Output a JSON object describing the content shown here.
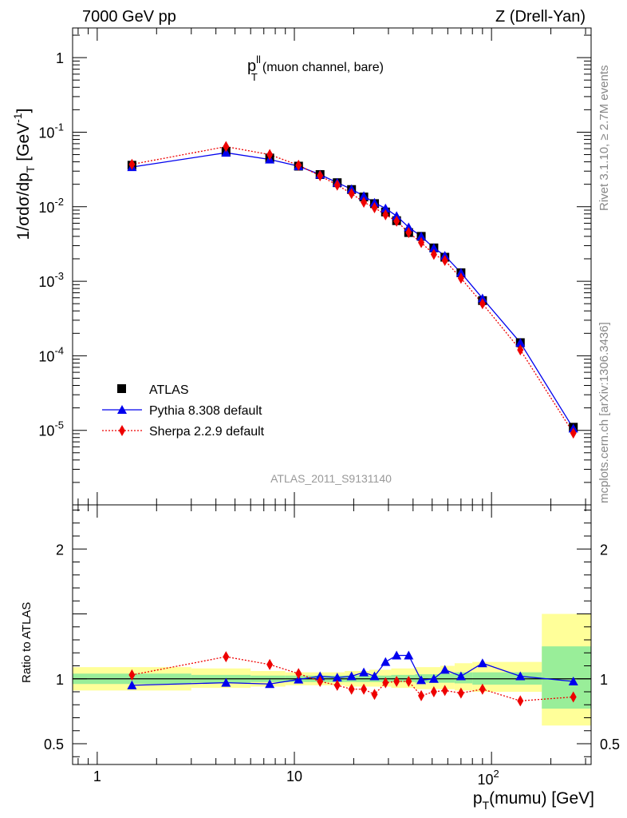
{
  "header": {
    "left": "7000 GeV pp",
    "right": "Z (Drell-Yan)"
  },
  "side_labels": {
    "rivet": "Rivet 3.1.10, ≥ 2.7M events",
    "source": "mcplots.cern.ch [arXiv:1306.3436]"
  },
  "chart_data": [
    {
      "type": "scatter",
      "title": "p_T^ll (muon channel, bare)",
      "title_main": "p",
      "title_sup": "ll",
      "title_sub": "T",
      "title_rest": "(muon channel, bare)",
      "ylabel": "1/σdσ/dp_T [GeV⁻¹]",
      "analysis_id": "ATLAS_2011_S9131140",
      "xscale": "log",
      "yscale": "log",
      "xlim": [
        0.75,
        320
      ],
      "ylim": [
        1e-06,
        2.5
      ],
      "legend_position": "bottom-left",
      "y_ticks": [
        "1",
        "10^-1",
        "10^-2",
        "10^-3",
        "10^-4",
        "10^-5"
      ],
      "series": [
        {
          "name": "ATLAS",
          "color": "#000000",
          "marker": "square",
          "x": [
            1.5,
            4.5,
            7.5,
            10.5,
            13.5,
            16.5,
            19.5,
            22.5,
            25.5,
            29,
            33,
            38,
            44,
            51,
            58,
            70,
            90,
            140,
            260
          ],
          "y": [
            0.036,
            0.055,
            0.045,
            0.035,
            0.027,
            0.021,
            0.017,
            0.0135,
            0.011,
            0.0085,
            0.0065,
            0.0045,
            0.004,
            0.0028,
            0.0021,
            0.0013,
            0.00055,
            0.00015,
            1.1e-05
          ]
        },
        {
          "name": "Pythia 8.308 default",
          "color": "#0000ee",
          "marker": "triangle",
          "linestyle": "solid",
          "x": [
            1.5,
            4.5,
            7.5,
            10.5,
            13.5,
            16.5,
            19.5,
            22.5,
            25.5,
            29,
            33,
            38,
            44,
            51,
            58,
            70,
            90,
            140,
            260
          ],
          "y": [
            0.034,
            0.053,
            0.043,
            0.035,
            0.027,
            0.021,
            0.0172,
            0.0139,
            0.0113,
            0.0095,
            0.0075,
            0.0053,
            0.004,
            0.0028,
            0.0022,
            0.0013,
            0.00059,
            0.00015,
            1.06e-05
          ]
        },
        {
          "name": "Sherpa 2.2.9 default",
          "color": "#ee0000",
          "marker": "diamond",
          "linestyle": "dotted",
          "x": [
            1.5,
            4.5,
            7.5,
            10.5,
            13.5,
            16.5,
            19.5,
            22.5,
            25.5,
            29,
            33,
            38,
            44,
            51,
            58,
            70,
            90,
            140,
            260
          ],
          "y": [
            0.037,
            0.064,
            0.05,
            0.036,
            0.026,
            0.0195,
            0.015,
            0.0115,
            0.0097,
            0.0078,
            0.0064,
            0.0045,
            0.0033,
            0.0023,
            0.0019,
            0.0011,
            0.0005,
            0.00012,
            9.2e-06
          ]
        }
      ]
    },
    {
      "type": "scatter",
      "ylabel": "Ratio to ATLAS",
      "xlabel": "p_T(mumu) [GeV]",
      "xlabel_p": "p",
      "xlabel_sub": "T",
      "xlabel_rest": "(mumu) [GeV]",
      "xscale": "log",
      "xlim": [
        0.75,
        320
      ],
      "ylim": [
        0.34,
        2.34
      ],
      "y_ticks": [
        0.5,
        1,
        2
      ],
      "x_tick_labels": [
        "1",
        "10",
        "10^2"
      ],
      "bands": [
        {
          "x": [
            0.75,
            3
          ],
          "stat": [
            0.96,
            1.04
          ],
          "total": [
            0.91,
            1.09
          ]
        },
        {
          "x": [
            3,
            6
          ],
          "stat": [
            0.97,
            1.03
          ],
          "total": [
            0.93,
            1.08
          ]
        },
        {
          "x": [
            6,
            9
          ],
          "stat": [
            0.975,
            1.025
          ],
          "total": [
            0.94,
            1.06
          ]
        },
        {
          "x": [
            9,
            12
          ],
          "stat": [
            0.975,
            1.025
          ],
          "total": [
            0.95,
            1.05
          ]
        },
        {
          "x": [
            12,
            18
          ],
          "stat": [
            0.975,
            1.025
          ],
          "total": [
            0.95,
            1.05
          ]
        },
        {
          "x": [
            18,
            24
          ],
          "stat": [
            0.975,
            1.025
          ],
          "total": [
            0.94,
            1.06
          ]
        },
        {
          "x": [
            24,
            31
          ],
          "stat": [
            0.975,
            1.025
          ],
          "total": [
            0.94,
            1.07
          ]
        },
        {
          "x": [
            31,
            41
          ],
          "stat": [
            0.975,
            1.03
          ],
          "total": [
            0.93,
            1.08
          ]
        },
        {
          "x": [
            41,
            55
          ],
          "stat": [
            0.97,
            1.035
          ],
          "total": [
            0.92,
            1.09
          ]
        },
        {
          "x": [
            55,
            65
          ],
          "stat": [
            0.97,
            1.04
          ],
          "total": [
            0.92,
            1.1
          ]
        },
        {
          "x": [
            65,
            80
          ],
          "stat": [
            0.965,
            1.05
          ],
          "total": [
            0.91,
            1.12
          ]
        },
        {
          "x": [
            80,
            180
          ],
          "stat": [
            0.955,
            1.05
          ],
          "total": [
            0.9,
            1.13
          ]
        },
        {
          "x": [
            180,
            320
          ],
          "stat": [
            0.77,
            1.25
          ],
          "total": [
            0.64,
            1.5
          ]
        }
      ],
      "series": [
        {
          "name": "Pythia 8.308 default",
          "color": "#0000ee",
          "marker": "triangle",
          "x": [
            1.5,
            4.5,
            7.5,
            10.5,
            13.5,
            16.5,
            19.5,
            22.5,
            25.5,
            29,
            33,
            38,
            44,
            51,
            58,
            70,
            90,
            140,
            260
          ],
          "y": [
            0.95,
            0.97,
            0.96,
            0.995,
            1.02,
            1.01,
            1.02,
            1.05,
            1.02,
            1.13,
            1.18,
            1.18,
            0.99,
            1.0,
            1.07,
            1.02,
            1.12,
            1.02,
            0.98
          ]
        },
        {
          "name": "Sherpa 2.2.9 default",
          "color": "#ee0000",
          "marker": "diamond",
          "x": [
            1.5,
            4.5,
            7.5,
            10.5,
            13.5,
            16.5,
            19.5,
            22.5,
            25.5,
            29,
            33,
            38,
            44,
            51,
            58,
            70,
            90,
            140,
            260
          ],
          "y": [
            1.03,
            1.17,
            1.11,
            1.04,
            0.98,
            0.95,
            0.92,
            0.92,
            0.88,
            0.97,
            0.98,
            0.98,
            0.87,
            0.9,
            0.91,
            0.89,
            0.92,
            0.83,
            0.86
          ]
        }
      ]
    }
  ]
}
